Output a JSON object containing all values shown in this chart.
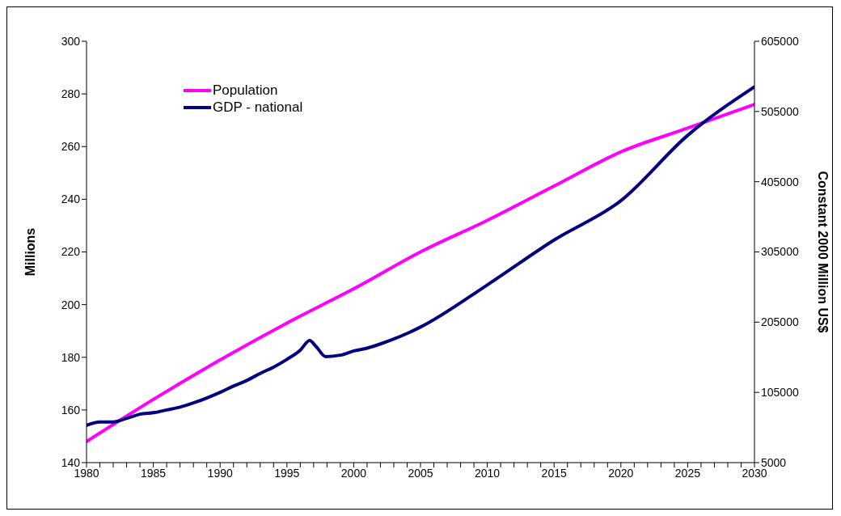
{
  "chart_data": {
    "type": "line",
    "ylabel": "Millions",
    "y2label": "Constant 2000 Million US$",
    "legend": "top left",
    "marker": "none",
    "line_style": "solid",
    "xlim": [
      1980,
      2030
    ],
    "xticks": [
      1980,
      {
        "value": 1981,
        "label": null
      },
      {
        "value": 1982,
        "label": null
      },
      {
        "value": 1983,
        "label": null
      },
      {
        "value": 1984,
        "label": null
      },
      1985,
      {
        "value": 1986,
        "label": null
      },
      {
        "value": 1987,
        "label": null
      },
      {
        "value": 1988,
        "label": null
      },
      {
        "value": 1989,
        "label": null
      },
      1990,
      {
        "value": 1991,
        "label": null
      },
      {
        "value": 1992,
        "label": null
      },
      {
        "value": 1993,
        "label": null
      },
      {
        "value": 1994,
        "label": null
      },
      1995,
      {
        "value": 1996,
        "label": null
      },
      {
        "value": 1997,
        "label": null
      },
      {
        "value": 1998,
        "label": null
      },
      {
        "value": 1999,
        "label": null
      },
      2000,
      {
        "value": 2001,
        "label": null
      },
      {
        "value": 2002,
        "label": null
      },
      {
        "value": 2003,
        "label": null
      },
      {
        "value": 2004,
        "label": null
      },
      2005,
      {
        "value": 2006,
        "label": null
      },
      {
        "value": 2007,
        "label": null
      },
      {
        "value": 2008,
        "label": null
      },
      {
        "value": 2009,
        "label": null
      },
      2010,
      {
        "value": 2011,
        "label": null
      },
      {
        "value": 2012,
        "label": null
      },
      {
        "value": 2013,
        "label": null
      },
      {
        "value": 2014,
        "label": null
      },
      2015,
      {
        "value": 2016,
        "label": null
      },
      {
        "value": 2017,
        "label": null
      },
      {
        "value": 2018,
        "label": null
      },
      {
        "value": 2019,
        "label": null
      },
      2020,
      {
        "value": 2021,
        "label": null
      },
      {
        "value": 2022,
        "label": null
      },
      {
        "value": 2023,
        "label": null
      },
      {
        "value": 2024,
        "label": null
      },
      2025,
      {
        "value": 2026,
        "label": null
      },
      {
        "value": 2027,
        "label": null
      },
      {
        "value": 2028,
        "label": null
      },
      {
        "value": 2029,
        "label": null
      },
      2030
    ],
    "ylim": [
      140,
      300
    ],
    "yticks": [
      140,
      160,
      180,
      200,
      220,
      240,
      260,
      280,
      300
    ],
    "y2lim": [
      5000,
      605000
    ],
    "y2ticks": [
      5000,
      105000,
      205000,
      305000,
      405000,
      505000,
      605000
    ],
    "series": [
      {
        "name": "Population",
        "color": "#ff00ff",
        "x": [
          1980,
          1985,
          1990,
          1995,
          2000,
          2005,
          2010,
          2015,
          2020,
          2025,
          2030
        ],
        "values": [
          148,
          164,
          179,
          193,
          206,
          220,
          232,
          245,
          258,
          267,
          276
        ]
      },
      {
        "name": "GDP - national",
        "color": "#000080",
        "axis": "y2",
        "x": [
          1980,
          1981,
          1982,
          1983,
          1984,
          1985,
          1986,
          1987,
          1988,
          1989,
          1990,
          1991,
          1992,
          1993,
          1994,
          1995,
          1996,
          1996.7,
          1997.2,
          1997.9,
          1999,
          2000,
          2001,
          2002,
          2003,
          2004,
          2005,
          2010,
          2015,
          2020,
          2025,
          2030
        ],
        "values": [
          58000,
          63000,
          63000,
          68000,
          74000,
          76000,
          80000,
          84000,
          90000,
          97000,
          105000,
          114000,
          122000,
          132000,
          141000,
          152000,
          165000,
          179000,
          170000,
          156000,
          158000,
          164000,
          168000,
          174000,
          181000,
          189000,
          198000,
          258000,
          322000,
          378000,
          471000,
          540000
        ]
      }
    ]
  }
}
